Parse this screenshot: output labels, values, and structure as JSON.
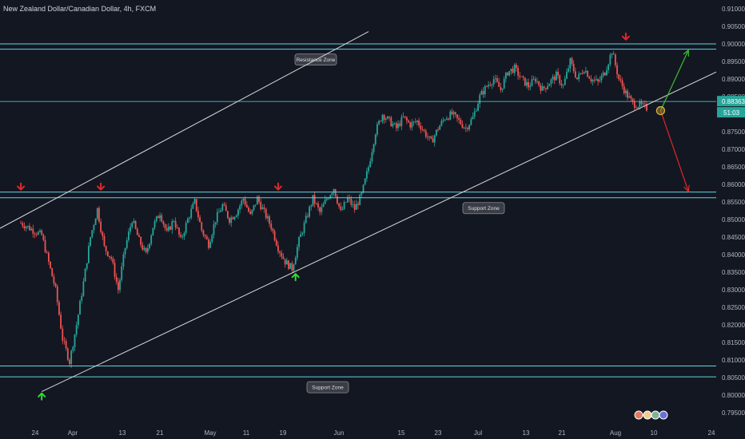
{
  "header": {
    "title": "New Zealand Dollar/Canadian Dollar, 4h, FXCM"
  },
  "chart_data": {
    "type": "candlestick",
    "symbol": "New Zealand Dollar/Canadian Dollar",
    "timeframe": "4h",
    "source": "FXCM",
    "ylim": [
      0.7925,
      0.9125
    ],
    "yticks": [
      "0.91000",
      "0.90500",
      "0.90000",
      "0.89500",
      "0.89000",
      "0.88500",
      "0.88000",
      "0.87500",
      "0.87000",
      "0.86500",
      "0.86000",
      "0.85500",
      "0.85000",
      "0.84500",
      "0.84000",
      "0.83500",
      "0.83000",
      "0.82500",
      "0.82000",
      "0.81500",
      "0.81000",
      "0.80500",
      "0.80000",
      "0.79500"
    ],
    "xticks": [
      "24",
      "Apr",
      "13",
      "21",
      "May",
      "11",
      "19",
      "Jun",
      "15",
      "23",
      "Jul",
      "13",
      "21",
      "Aug",
      "10",
      "24"
    ],
    "price_path": [
      [
        0,
        0.849
      ],
      [
        3,
        0.8455
      ],
      [
        5,
        0.83
      ],
      [
        6,
        0.816
      ],
      [
        7,
        0.8095
      ],
      [
        8,
        0.82
      ],
      [
        9,
        0.832
      ],
      [
        10,
        0.845
      ],
      [
        11,
        0.853
      ],
      [
        12,
        0.842
      ],
      [
        13,
        0.839
      ],
      [
        14,
        0.83
      ],
      [
        15,
        0.842
      ],
      [
        16,
        0.85
      ],
      [
        17,
        0.844
      ],
      [
        18,
        0.84
      ],
      [
        19,
        0.848
      ],
      [
        20,
        0.852
      ],
      [
        21,
        0.846
      ],
      [
        22,
        0.85
      ],
      [
        23,
        0.844
      ],
      [
        24,
        0.85
      ],
      [
        25,
        0.855
      ],
      [
        26,
        0.847
      ],
      [
        27,
        0.843
      ],
      [
        28,
        0.85
      ],
      [
        29,
        0.854
      ],
      [
        30,
        0.85
      ],
      [
        31,
        0.852
      ],
      [
        32,
        0.856
      ],
      [
        33,
        0.851
      ],
      [
        34,
        0.856
      ],
      [
        35,
        0.852
      ],
      [
        36,
        0.848
      ],
      [
        37,
        0.842
      ],
      [
        38,
        0.838
      ],
      [
        39,
        0.836
      ],
      [
        40,
        0.844
      ],
      [
        41,
        0.85
      ],
      [
        42,
        0.856
      ],
      [
        43,
        0.852
      ],
      [
        44,
        0.856
      ],
      [
        45,
        0.859
      ],
      [
        46,
        0.852
      ],
      [
        47,
        0.856
      ],
      [
        48,
        0.853
      ],
      [
        49,
        0.857
      ],
      [
        50,
        0.865
      ],
      [
        51,
        0.875
      ],
      [
        52,
        0.88
      ],
      [
        53,
        0.878
      ],
      [
        54,
        0.876
      ],
      [
        55,
        0.879
      ],
      [
        56,
        0.877
      ],
      [
        57,
        0.878
      ],
      [
        58,
        0.875
      ],
      [
        59,
        0.872
      ],
      [
        60,
        0.876
      ],
      [
        61,
        0.879
      ],
      [
        62,
        0.88
      ],
      [
        63,
        0.878
      ],
      [
        64,
        0.876
      ],
      [
        65,
        0.879
      ],
      [
        66,
        0.885
      ],
      [
        67,
        0.888
      ],
      [
        68,
        0.89
      ],
      [
        69,
        0.887
      ],
      [
        70,
        0.892
      ],
      [
        71,
        0.893
      ],
      [
        72,
        0.89
      ],
      [
        73,
        0.888
      ],
      [
        74,
        0.89
      ],
      [
        75,
        0.887
      ],
      [
        76,
        0.889
      ],
      [
        77,
        0.891
      ],
      [
        78,
        0.888
      ],
      [
        79,
        0.895
      ],
      [
        80,
        0.89
      ],
      [
        81,
        0.893
      ],
      [
        82,
        0.89
      ],
      [
        83,
        0.889
      ],
      [
        84,
        0.892
      ],
      [
        85,
        0.898
      ],
      [
        86,
        0.89
      ],
      [
        87,
        0.886
      ],
      [
        88,
        0.883
      ],
      [
        89,
        0.8825
      ],
      [
        90,
        0.8817
      ]
    ],
    "x_domain": [
      -3,
      100
    ],
    "last_price": "0.88363",
    "countdown": "51:03",
    "zones": [
      {
        "label": "Resistance Zone",
        "lo": 0.8985,
        "hi": 0.9
      },
      {
        "label": "Support Zone",
        "lo": 0.8562,
        "hi": 0.8578
      },
      {
        "label": "Support Zone",
        "lo": 0.8052,
        "hi": 0.8083
      }
    ],
    "current_price_line": 0.8836,
    "trendlines": [
      {
        "from": [
          -3,
          0.8475
        ],
        "to": [
          50,
          0.9035
        ]
      },
      {
        "from": [
          3,
          0.801
        ],
        "to": [
          100,
          0.892
        ]
      }
    ],
    "projections": [
      {
        "direction": "up",
        "from": [
          92,
          0.881
        ],
        "to": [
          96,
          0.8982
        ],
        "color": "#3bbf2f"
      },
      {
        "direction": "down",
        "from": [
          92,
          0.881
        ],
        "to": [
          96,
          0.858
        ],
        "color": "#e02828"
      }
    ],
    "markers": [
      {
        "kind": "down",
        "x": 0,
        "y": 0.8585,
        "color": "#e02828"
      },
      {
        "kind": "down",
        "x": 11.5,
        "y": 0.8585,
        "color": "#e02828"
      },
      {
        "kind": "down",
        "x": 37,
        "y": 0.8585,
        "color": "#e02828"
      },
      {
        "kind": "down",
        "x": 87,
        "y": 0.9012,
        "color": "#e02828"
      },
      {
        "kind": "up",
        "x": 3,
        "y": 0.8005,
        "color": "#2ee02e"
      },
      {
        "kind": "up",
        "x": 39.5,
        "y": 0.8345,
        "color": "#2ee02e"
      }
    ],
    "colors": {
      "up": "#26a69a",
      "down": "#ef5350",
      "zone": "#5fd3e3",
      "trend": "#d8d8d8",
      "tag": "#26a69a"
    },
    "grid": false
  }
}
